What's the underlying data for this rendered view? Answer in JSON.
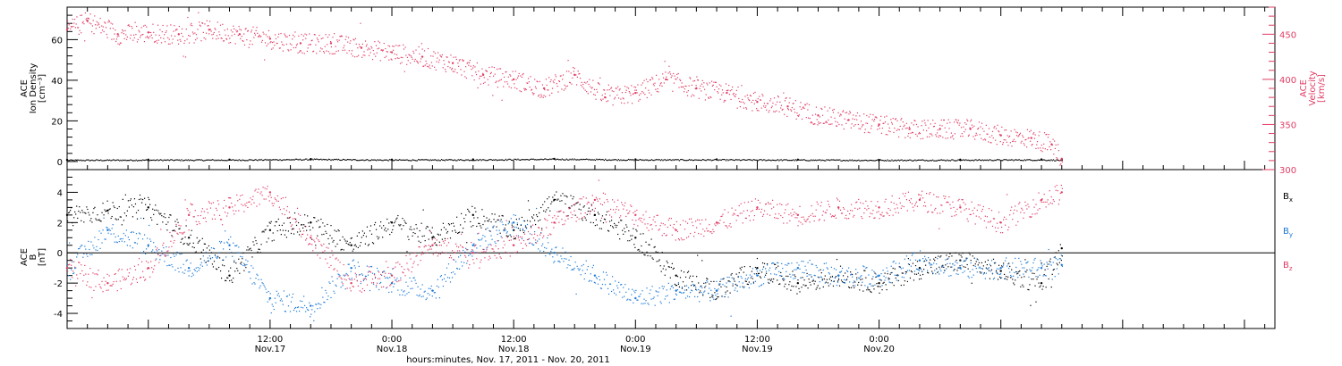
{
  "chart_data": [
    {
      "type": "scatter",
      "panel": "top",
      "ylabel": [
        "ACE",
        "Ion Density",
        "[cm⁻³]"
      ],
      "y2label": [
        "ACE",
        "Velocity",
        "[km/s]"
      ],
      "ylim": [
        -4,
        76
      ],
      "y2lim": [
        300,
        480
      ],
      "yticks": [
        0,
        20,
        40,
        60
      ],
      "y2ticks": [
        300,
        350,
        400,
        450
      ],
      "colors": {
        "density": "#000000",
        "velocity": "#e03c64"
      },
      "series": [
        {
          "axis": "left",
          "color": "#000000",
          "x": [
            -8,
            0,
            8,
            16,
            24,
            32,
            40,
            48,
            56,
            64,
            72,
            80,
            88,
            90
          ],
          "values": [
            0.8,
            0.9,
            0.9,
            1.2,
            0.9,
            1.0,
            1.3,
            1.0,
            1.0,
            0.9,
            0.8,
            0.9,
            1.0,
            0.8
          ]
        },
        {
          "axis": "right",
          "color": "#e03c64",
          "x": [
            -8,
            -6,
            -3,
            0,
            3,
            6,
            9,
            12,
            15,
            18,
            21,
            24,
            27,
            30,
            33,
            36,
            39,
            42,
            45,
            48,
            51,
            54,
            57,
            60,
            63,
            66,
            69,
            72,
            75,
            78,
            81,
            84,
            87,
            89,
            90
          ],
          "values": [
            455,
            465,
            450,
            452,
            450,
            455,
            450,
            445,
            440,
            440,
            435,
            430,
            425,
            418,
            405,
            400,
            390,
            405,
            380,
            385,
            400,
            390,
            385,
            375,
            370,
            360,
            355,
            350,
            345,
            345,
            345,
            338,
            335,
            328,
            312
          ]
        }
      ]
    },
    {
      "type": "scatter",
      "panel": "bottom",
      "ylabel": [
        "ACE",
        "B",
        "[nT]"
      ],
      "ylim": [
        -5,
        5.5
      ],
      "yticks": [
        -4,
        -2,
        0,
        2,
        4
      ],
      "legend": [
        "Bx",
        "By",
        "Bz"
      ],
      "legend_placement": "right",
      "colors": {
        "Bx": "#000000",
        "By": "#1878d6",
        "Bz": "#e03c64"
      },
      "series": [
        {
          "name": "Bx",
          "color": "#000000",
          "x": [
            -8,
            -4,
            0,
            4,
            8,
            12,
            16,
            20,
            24,
            28,
            32,
            36,
            40,
            44,
            48,
            52,
            56,
            60,
            64,
            68,
            72,
            76,
            80,
            84,
            88,
            90
          ],
          "values": [
            2.5,
            2.8,
            3.0,
            1.0,
            -1.5,
            1.5,
            2.0,
            0.5,
            2.0,
            1.0,
            2.5,
            1.5,
            3.5,
            2.5,
            1.0,
            -1.5,
            -2.5,
            -1.0,
            -2.0,
            -1.5,
            -2.0,
            -1.0,
            -0.5,
            -1.2,
            -2.0,
            0.3
          ]
        },
        {
          "name": "By",
          "color": "#1878d6",
          "x": [
            -8,
            -4,
            0,
            4,
            8,
            12,
            16,
            20,
            24,
            28,
            32,
            36,
            40,
            44,
            48,
            52,
            56,
            60,
            64,
            68,
            72,
            76,
            80,
            84,
            88,
            90
          ],
          "values": [
            -1.0,
            1.5,
            0.5,
            -1.0,
            0.5,
            -3.0,
            -3.5,
            -1.0,
            -2.0,
            -2.5,
            0.5,
            2.0,
            0.0,
            -1.5,
            -3.0,
            -2.5,
            -2.5,
            -1.5,
            -1.0,
            -1.5,
            -1.5,
            -0.5,
            -1.0,
            -1.0,
            -1.0,
            -0.8
          ]
        },
        {
          "name": "Bz",
          "color": "#e03c64",
          "x": [
            -8,
            -4,
            0,
            4,
            8,
            12,
            16,
            20,
            24,
            28,
            32,
            36,
            40,
            44,
            48,
            52,
            56,
            60,
            64,
            68,
            72,
            76,
            80,
            84,
            88,
            90
          ],
          "values": [
            -1.0,
            -2.0,
            -1.0,
            2.5,
            3.0,
            4.0,
            1.0,
            -2.0,
            -1.5,
            0.5,
            0.0,
            0.5,
            2.0,
            3.5,
            2.5,
            1.5,
            2.0,
            3.0,
            2.5,
            3.0,
            3.0,
            3.5,
            3.0,
            2.0,
            3.5,
            4.0
          ]
        }
      ]
    }
  ],
  "xaxis": {
    "xlim": [
      -8,
      111
    ],
    "ticks": [
      {
        "x": 12,
        "time": "12:00",
        "date": "Nov.17"
      },
      {
        "x": 24,
        "time": "0:00",
        "date": "Nov.18"
      },
      {
        "x": 36,
        "time": "12:00",
        "date": "Nov.18"
      },
      {
        "x": 48,
        "time": "0:00",
        "date": "Nov.19"
      },
      {
        "x": 60,
        "time": "12:00",
        "date": "Nov.19"
      },
      {
        "x": 72,
        "time": "0:00",
        "date": "Nov.20"
      }
    ],
    "label": "hours:minutes, Nov. 17, 2011 - Nov. 20, 2011"
  },
  "legend_labels": {
    "Bx": [
      "B",
      "x"
    ],
    "By": [
      "B",
      "y"
    ],
    "Bz": [
      "B",
      "z"
    ]
  }
}
